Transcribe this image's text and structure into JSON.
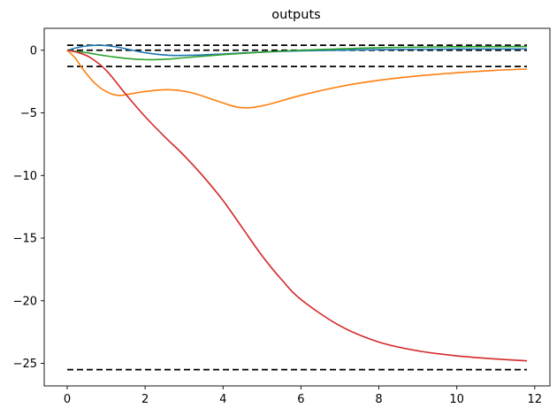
{
  "chart_data": {
    "type": "line",
    "title": "outputs",
    "xlabel": "",
    "ylabel": "",
    "xlim": [
      -0.59,
      12.39
    ],
    "ylim": [
      -26.8,
      1.75
    ],
    "x_ticks": [
      0,
      2,
      4,
      6,
      8,
      10,
      12
    ],
    "y_ticks": [
      0,
      -5,
      -10,
      -15,
      -20,
      -25
    ],
    "grid": false,
    "series": [
      {
        "color": "#1f77b4",
        "style": "solid",
        "x": [
          0,
          0.4,
          0.8,
          1.2,
          1.6,
          2.0,
          2.6,
          3.2,
          4.0,
          5.0,
          6.0,
          8.0,
          10.0,
          11.8
        ],
        "y": [
          0,
          0.3,
          0.4,
          0.3,
          0.05,
          -0.2,
          -0.4,
          -0.4,
          -0.3,
          -0.15,
          -0.05,
          0.05,
          0.1,
          0.1
        ]
      },
      {
        "color": "#ff7f0e",
        "style": "solid",
        "x": [
          0,
          0.2,
          0.4,
          0.7,
          1.0,
          1.3,
          1.6,
          2.0,
          2.6,
          3.2,
          3.8,
          4.3,
          4.6,
          4.8,
          5.2,
          6.0,
          7.0,
          8.0,
          9.0,
          10.0,
          11.0,
          11.8
        ],
        "y": [
          0,
          -0.6,
          -1.5,
          -2.6,
          -3.3,
          -3.6,
          -3.5,
          -3.3,
          -3.15,
          -3.4,
          -4.0,
          -4.5,
          -4.6,
          -4.55,
          -4.3,
          -3.6,
          -2.9,
          -2.4,
          -2.05,
          -1.8,
          -1.6,
          -1.5
        ]
      },
      {
        "color": "#2ca02c",
        "style": "solid",
        "x": [
          0,
          0.5,
          1.0,
          1.5,
          2.0,
          2.5,
          3.0,
          4.0,
          5.0,
          6.0,
          8.0,
          10.0,
          11.8
        ],
        "y": [
          0,
          -0.2,
          -0.45,
          -0.65,
          -0.75,
          -0.72,
          -0.6,
          -0.35,
          -0.15,
          0.0,
          0.2,
          0.28,
          0.3
        ]
      },
      {
        "color": "#d62728",
        "style": "solid",
        "x": [
          0,
          0.3,
          0.6,
          1.0,
          1.5,
          2.0,
          2.5,
          3.0,
          3.5,
          4.0,
          4.5,
          5.0,
          5.5,
          6.0,
          7.0,
          8.0,
          9.0,
          10.0,
          11.0,
          11.8
        ],
        "y": [
          0,
          -0.2,
          -0.6,
          -1.6,
          -3.5,
          -5.3,
          -6.9,
          -8.4,
          -10.1,
          -12.0,
          -14.2,
          -16.4,
          -18.3,
          -19.9,
          -22.0,
          -23.3,
          -24.0,
          -24.4,
          -24.65,
          -24.8
        ]
      }
    ],
    "reference_lines": [
      {
        "y": 0.4,
        "x_range": [
          0,
          11.8
        ],
        "color": "#000000",
        "style": "dashed"
      },
      {
        "y": 0.0,
        "x_range": [
          0,
          11.8
        ],
        "color": "#000000",
        "style": "dashed"
      },
      {
        "y": -1.3,
        "x_range": [
          0,
          11.8
        ],
        "color": "#000000",
        "style": "dashed"
      },
      {
        "y": -25.5,
        "x_range": [
          0,
          11.8
        ],
        "color": "#000000",
        "style": "dashed"
      }
    ]
  }
}
